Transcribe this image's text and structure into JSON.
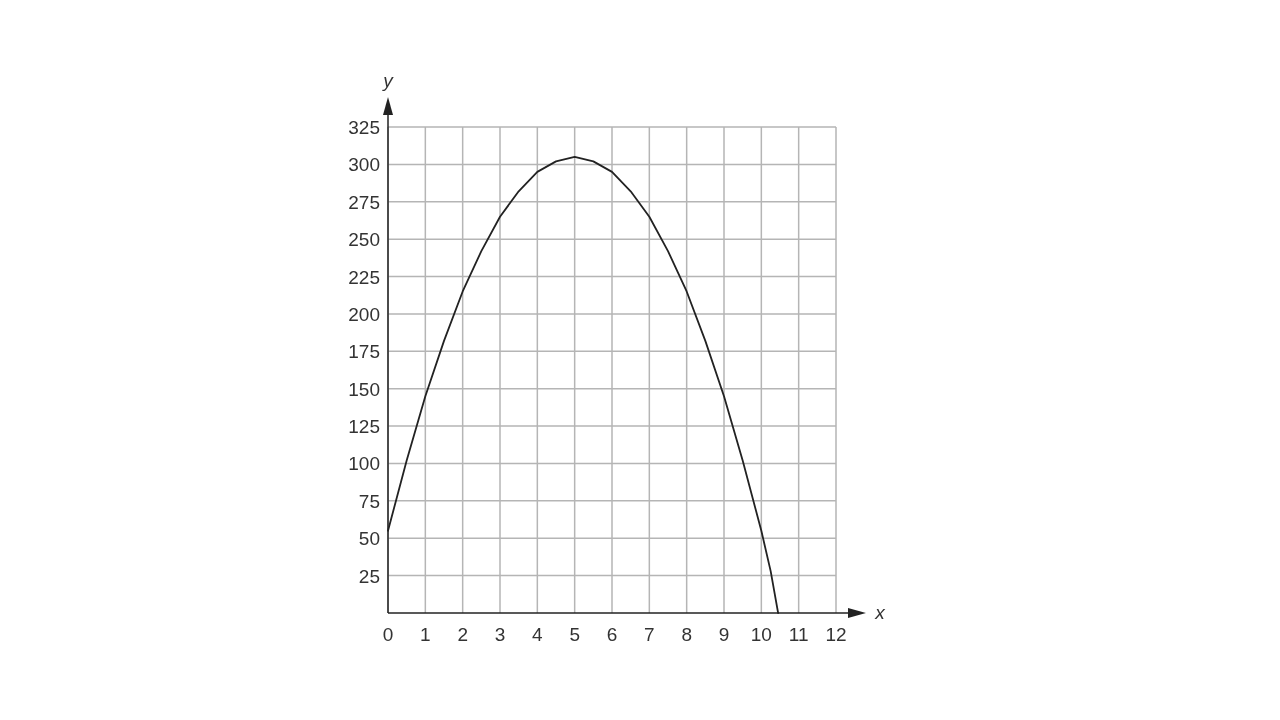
{
  "chart_data": {
    "type": "line",
    "xlabel": "x",
    "ylabel": "y",
    "x": [
      0,
      0.5,
      1,
      1.5,
      2,
      2.5,
      3,
      3.5,
      4,
      4.5,
      5,
      5.5,
      6,
      6.5,
      7,
      7.5,
      8,
      8.5,
      9,
      9.5,
      10,
      10.25,
      10.45
    ],
    "values": [
      55,
      102,
      145,
      182,
      215,
      242,
      265,
      282,
      295,
      302,
      305,
      302,
      295,
      282,
      265,
      242,
      215,
      182,
      145,
      102,
      55,
      28,
      0
    ],
    "color": "#222222",
    "xlim": [
      0,
      12
    ],
    "ylim": [
      0,
      325
    ],
    "xticks": [
      0,
      1,
      2,
      3,
      4,
      5,
      6,
      7,
      8,
      9,
      10,
      11,
      12
    ],
    "yticks": [
      25,
      50,
      75,
      100,
      125,
      150,
      175,
      200,
      225,
      250,
      275,
      300,
      325
    ],
    "grid": true,
    "marker": "none",
    "line_style": "solid"
  }
}
